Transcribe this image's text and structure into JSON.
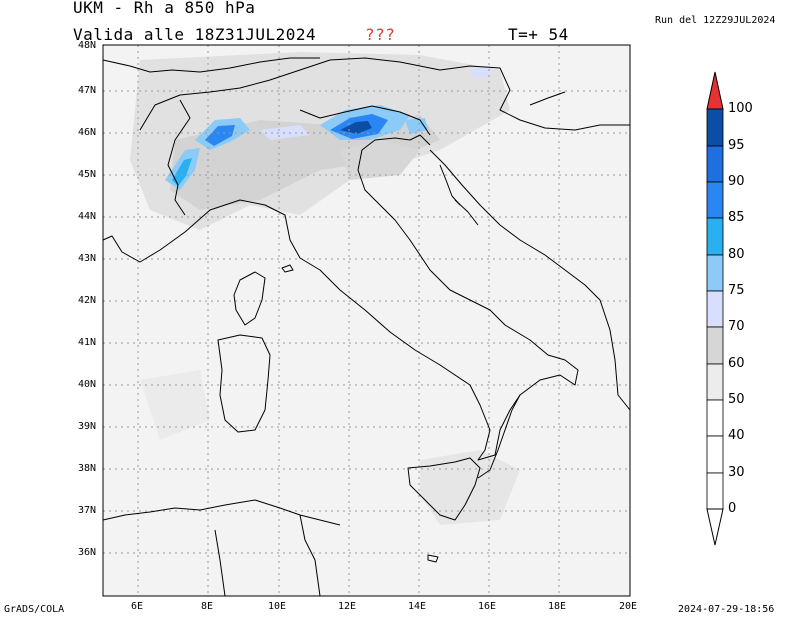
{
  "header": {
    "title": "UKM - Rh a 850 hPa",
    "valid": "Valida alle 18Z31JUL2024",
    "flag": "???",
    "step": "T=+ 54",
    "run": "Run del 12Z29JUL2024"
  },
  "footer": {
    "software": "GrADS/COLA",
    "timestamp": "2024-07-29-18:56"
  },
  "map": {
    "lat_labels": [
      "48N",
      "47N",
      "46N",
      "45N",
      "44N",
      "43N",
      "42N",
      "41N",
      "40N",
      "39N",
      "38N",
      "37N",
      "36N"
    ],
    "lon_labels": [
      "6E",
      "8E",
      "10E",
      "12E",
      "14E",
      "16E",
      "18E",
      "20E"
    ]
  },
  "colorbar": {
    "levels": [
      "100",
      "95",
      "90",
      "85",
      "80",
      "75",
      "70",
      "60",
      "50",
      "40",
      "30",
      "0"
    ],
    "colors": [
      "#e63232",
      "#0b4ea6",
      "#1e6fe0",
      "#2a86f2",
      "#28b0f0",
      "#8ccbf7",
      "#d7dffc",
      "#d6d6d6",
      "#ececec",
      "#ffffff",
      "#ffffff",
      "#ffffff"
    ]
  }
}
